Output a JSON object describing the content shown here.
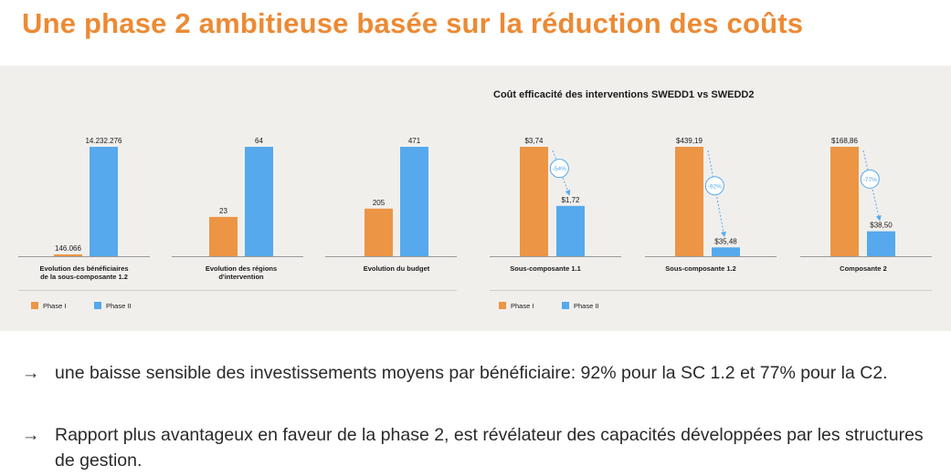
{
  "page": {
    "title": "Une phase 2 ambitieuse basée sur la réduction des coûts",
    "bullets": [
      {
        "arrow": "→",
        "text": "une baisse sensible des investissements moyens par bénéficiaire: 92% pour la SC 1.2 et 77% pour la C2."
      },
      {
        "arrow": "→",
        "text": "Rapport plus avantageux en faveur de la phase 2, est révélateur des capacités développées par les structures de gestion."
      }
    ]
  },
  "colors": {
    "phase1": "#ec9544",
    "phase2": "#55a9ec",
    "title": "#ec8a34",
    "panel": "#f1efec",
    "annotation": "#55a9ec"
  },
  "chart_data": [
    {
      "type": "bar",
      "title": "",
      "categories": [
        "Evolution des bénéficiaires de la sous-composante 1.2"
      ],
      "category_lines": [
        [
          "Evolution des bénéficiaires",
          "de la sous-composante 1.2"
        ]
      ],
      "series": [
        {
          "name": "Phase I",
          "values": [
            146066
          ],
          "labels": [
            "146.066"
          ]
        },
        {
          "name": "Phase II",
          "values": [
            14232276
          ],
          "labels": [
            "14.232.276"
          ]
        }
      ]
    },
    {
      "type": "bar",
      "title": "",
      "categories": [
        "Evolution des régions d'intervention"
      ],
      "category_lines": [
        [
          "Evolution des régions",
          "d'intervention"
        ]
      ],
      "series": [
        {
          "name": "Phase I",
          "values": [
            23
          ],
          "labels": [
            "23"
          ]
        },
        {
          "name": "Phase II",
          "values": [
            64
          ],
          "labels": [
            "64"
          ]
        }
      ]
    },
    {
      "type": "bar",
      "title": "",
      "categories": [
        "Evolution du budget"
      ],
      "category_lines": [
        [
          "Evolution du budget"
        ]
      ],
      "series": [
        {
          "name": "Phase I",
          "values": [
            205
          ],
          "labels": [
            "205"
          ]
        },
        {
          "name": "Phase II",
          "values": [
            471
          ],
          "labels": [
            "471"
          ]
        }
      ]
    },
    {
      "type": "bar",
      "title": "Coût efficacité des interventions SWEDD1 vs SWEDD2",
      "categories": [
        "Sous-composante 1.1",
        "Sous-composante 1.2",
        "Composante 2"
      ],
      "series": [
        {
          "name": "Phase I",
          "values": [
            3.74,
            439.19,
            168.86
          ],
          "labels": [
            "$3,74",
            "$439,19",
            "$168,86"
          ]
        },
        {
          "name": "Phase II",
          "values": [
            1.72,
            35.48,
            38.5
          ],
          "labels": [
            "$1,72",
            "$35,48",
            "$38,50"
          ]
        }
      ],
      "annotations": [
        "-54%",
        "-92%",
        "-77%"
      ]
    }
  ],
  "legend": {
    "items": [
      "Phase I",
      "Phase II"
    ]
  }
}
